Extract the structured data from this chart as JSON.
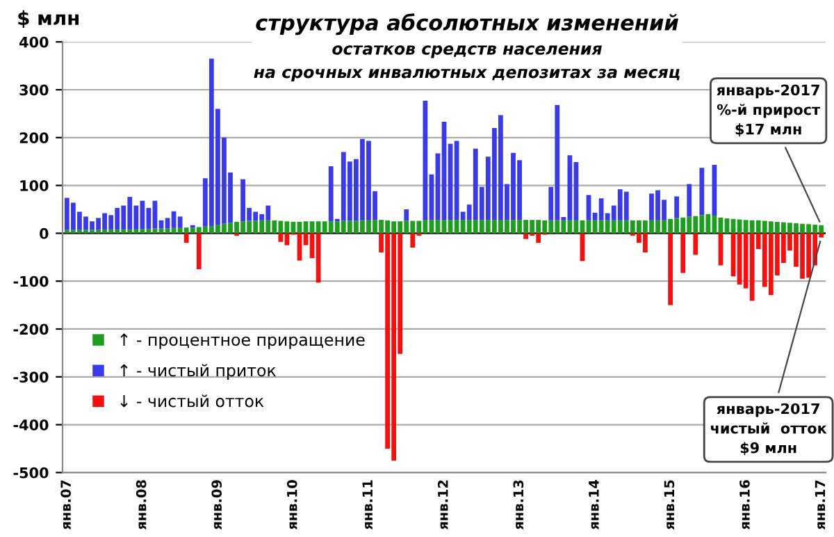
{
  "chart_data": {
    "type": "bar",
    "stacked": true,
    "title": "структура абсолютных изменений",
    "subtitle": "остатков средств населения\nна срочных инвалютных депозитах за месяц",
    "ylabel": "$ млн",
    "categories": [
      "янв.07",
      null,
      null,
      null,
      null,
      null,
      null,
      null,
      null,
      null,
      null,
      null,
      "янв.08",
      null,
      null,
      null,
      null,
      null,
      null,
      null,
      null,
      null,
      null,
      null,
      "янв.09",
      null,
      null,
      null,
      null,
      null,
      null,
      null,
      null,
      null,
      null,
      null,
      "янв.10",
      null,
      null,
      null,
      null,
      null,
      null,
      null,
      null,
      null,
      null,
      null,
      "янв.11",
      null,
      null,
      null,
      null,
      null,
      null,
      null,
      null,
      null,
      null,
      null,
      "янв.12",
      null,
      null,
      null,
      null,
      null,
      null,
      null,
      null,
      null,
      null,
      null,
      "янв.13",
      null,
      null,
      null,
      null,
      null,
      null,
      null,
      null,
      null,
      null,
      null,
      "янв.14",
      null,
      null,
      null,
      null,
      null,
      null,
      null,
      null,
      null,
      null,
      null,
      "янв.15",
      null,
      null,
      null,
      null,
      null,
      null,
      null,
      null,
      null,
      null,
      null,
      "янв.16",
      null,
      null,
      null,
      null,
      null,
      null,
      null,
      null,
      null,
      null,
      null,
      "янв.17"
    ],
    "series": [
      {
        "name": "↑ - процентное приращение",
        "color": "#1e9e1e",
        "values": [
          7,
          7,
          7,
          7,
          7,
          7,
          8,
          8,
          8,
          8,
          8,
          8,
          9,
          9,
          10,
          10,
          10,
          11,
          11,
          12,
          12,
          13,
          14,
          15,
          18,
          20,
          22,
          24,
          25,
          26,
          26,
          27,
          27,
          27,
          26,
          25,
          24,
          24,
          25,
          25,
          25,
          25,
          25,
          25,
          26,
          26,
          26,
          27,
          27,
          28,
          28,
          27,
          25,
          25,
          26,
          26,
          26,
          28,
          28,
          28,
          28,
          28,
          28,
          28,
          28,
          28,
          28,
          28,
          28,
          28,
          28,
          28,
          28,
          28,
          28,
          28,
          27,
          27,
          27,
          27,
          27,
          27,
          27,
          27,
          27,
          27,
          27,
          27,
          27,
          27,
          27,
          27,
          27,
          27,
          27,
          27,
          30,
          32,
          33,
          35,
          36,
          38,
          40,
          37,
          33,
          31,
          30,
          29,
          28,
          27,
          27,
          26,
          25,
          24,
          23,
          22,
          21,
          20,
          19,
          18,
          17
        ]
      },
      {
        "name": "↑ - чистый приток",
        "color": "#3a3ae8",
        "values": [
          67,
          57,
          38,
          28,
          18,
          25,
          34,
          30,
          45,
          50,
          68,
          50,
          59,
          44,
          58,
          17,
          22,
          35,
          24,
          null,
          5,
          null,
          101,
          350,
          242,
          180,
          105,
          null,
          88,
          27,
          19,
          13,
          31,
          null,
          null,
          null,
          null,
          null,
          null,
          null,
          null,
          null,
          115,
          5,
          144,
          124,
          129,
          170,
          166,
          60,
          null,
          null,
          null,
          null,
          24,
          null,
          null,
          249,
          95,
          139,
          205,
          159,
          165,
          17,
          32,
          149,
          69,
          132,
          192,
          219,
          75,
          140,
          125,
          null,
          null,
          null,
          null,
          70,
          241,
          7,
          136,
          122,
          null,
          53,
          16,
          46,
          15,
          31,
          65,
          60,
          null,
          null,
          null,
          56,
          63,
          43,
          null,
          45,
          null,
          68,
          null,
          99,
          null,
          106,
          null,
          null,
          null,
          null,
          null,
          null,
          null,
          null,
          null,
          null,
          null,
          null,
          null,
          null,
          null,
          null,
          null
        ]
      },
      {
        "name": "↓ - чистый отток",
        "color": "#f21010",
        "values": [
          null,
          null,
          null,
          null,
          null,
          null,
          null,
          null,
          null,
          null,
          null,
          null,
          null,
          null,
          null,
          null,
          null,
          null,
          null,
          -20,
          null,
          -75,
          null,
          null,
          null,
          null,
          null,
          -5,
          null,
          null,
          null,
          null,
          null,
          null,
          -18,
          -25,
          -3,
          -57,
          -25,
          -52,
          -103,
          null,
          null,
          null,
          null,
          null,
          null,
          null,
          null,
          null,
          -40,
          -450,
          -475,
          -252,
          null,
          -30,
          -5,
          null,
          null,
          null,
          null,
          null,
          null,
          null,
          null,
          null,
          null,
          null,
          null,
          null,
          null,
          null,
          null,
          -12,
          -5,
          -20,
          -3,
          null,
          null,
          null,
          null,
          null,
          -58,
          null,
          null,
          null,
          null,
          null,
          null,
          null,
          -5,
          -20,
          -40,
          null,
          null,
          null,
          -150,
          null,
          -83,
          null,
          -45,
          null,
          null,
          null,
          -67,
          null,
          -90,
          -107,
          -115,
          -141,
          -33,
          -112,
          -129,
          -88,
          -62,
          -36,
          -70,
          -95,
          -93,
          -67,
          -9
        ]
      }
    ],
    "ylim": [
      -500,
      400
    ],
    "yticks": [
      -500,
      -400,
      -300,
      -200,
      -100,
      0,
      100,
      200,
      300,
      400
    ],
    "grid": "y",
    "legend": "lower left",
    "annotations": [
      {
        "text": "январь-2017\n%-й прирост\n$17 млн",
        "x": "янв.17",
        "y": 17
      },
      {
        "text": "январь-2017\nчистый  отток\n$9 млн",
        "x": "янв.17",
        "y": -9
      }
    ]
  }
}
